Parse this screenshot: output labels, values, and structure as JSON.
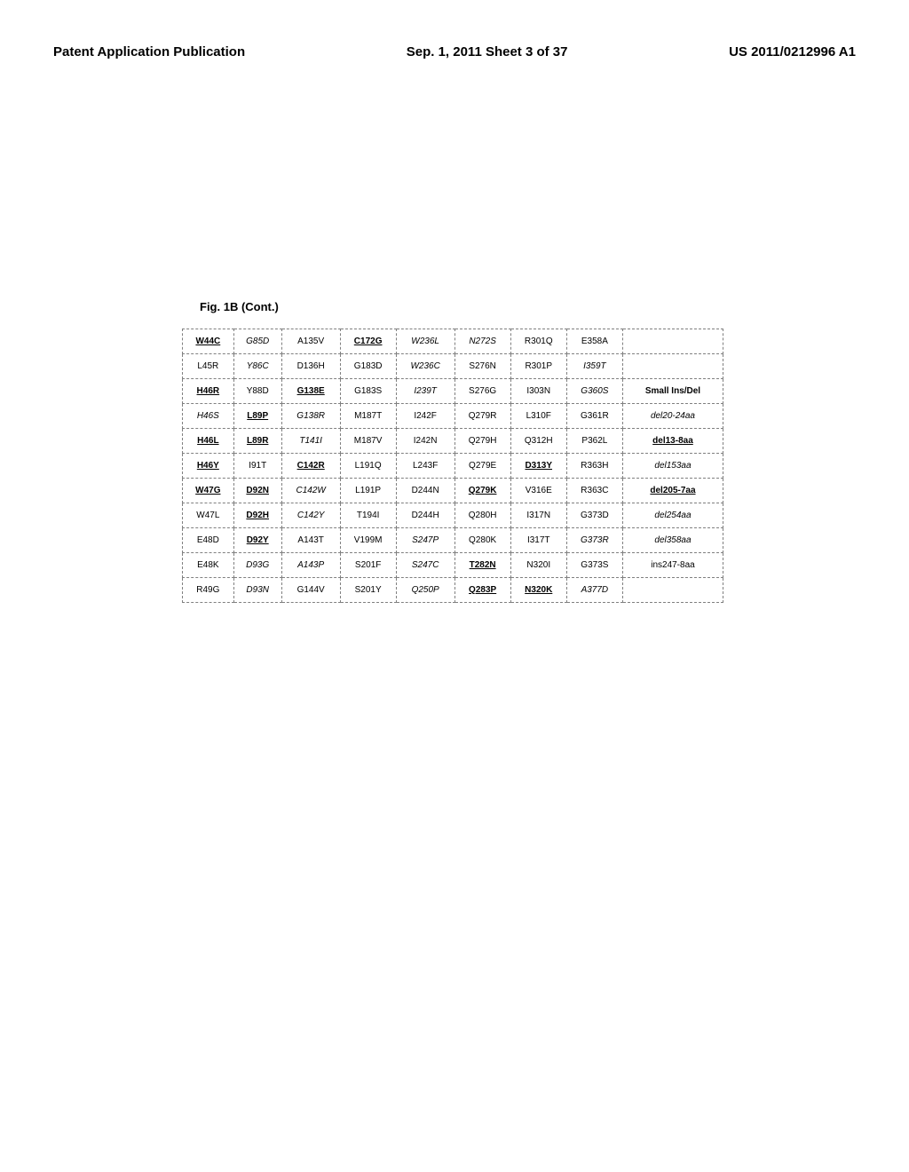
{
  "header": {
    "left": "Patent Application Publication",
    "center": "Sep. 1, 2011  Sheet 3 of 37",
    "right": "US 2011/0212996 A1"
  },
  "figure_label": "Fig. 1B (Cont.)",
  "table": {
    "rows": [
      [
        {
          "text": "W44C",
          "style": "bold-underline"
        },
        {
          "text": "G85D",
          "style": "italic"
        },
        {
          "text": "A135V",
          "style": ""
        },
        {
          "text": "C172G",
          "style": "bold-underline"
        },
        {
          "text": "W236L",
          "style": "italic"
        },
        {
          "text": "N272S",
          "style": "italic"
        },
        {
          "text": "R301Q",
          "style": ""
        },
        {
          "text": "E358A",
          "style": ""
        },
        {
          "text": "",
          "style": ""
        }
      ],
      [
        {
          "text": "L45R",
          "style": ""
        },
        {
          "text": "Y86C",
          "style": "italic"
        },
        {
          "text": "D136H",
          "style": ""
        },
        {
          "text": "G183D",
          "style": ""
        },
        {
          "text": "W236C",
          "style": "italic"
        },
        {
          "text": "S276N",
          "style": ""
        },
        {
          "text": "R301P",
          "style": ""
        },
        {
          "text": "I359T",
          "style": "italic"
        },
        {
          "text": "",
          "style": ""
        }
      ],
      [
        {
          "text": "H46R",
          "style": "bold-underline"
        },
        {
          "text": "Y88D",
          "style": ""
        },
        {
          "text": "G138E",
          "style": "bold-underline"
        },
        {
          "text": "G183S",
          "style": ""
        },
        {
          "text": "I239T",
          "style": "italic"
        },
        {
          "text": "S276G",
          "style": ""
        },
        {
          "text": "I303N",
          "style": ""
        },
        {
          "text": "G360S",
          "style": "italic"
        },
        {
          "text": "Small Ins/Del",
          "style": "bold"
        }
      ],
      [
        {
          "text": "H46S",
          "style": "italic"
        },
        {
          "text": "L89P",
          "style": "bold-underline"
        },
        {
          "text": "G138R",
          "style": "italic"
        },
        {
          "text": "M187T",
          "style": ""
        },
        {
          "text": "I242F",
          "style": ""
        },
        {
          "text": "Q279R",
          "style": ""
        },
        {
          "text": "L310F",
          "style": ""
        },
        {
          "text": "G361R",
          "style": ""
        },
        {
          "text": "del20-24aa",
          "style": "italic"
        }
      ],
      [
        {
          "text": "H46L",
          "style": "bold-underline"
        },
        {
          "text": "L89R",
          "style": "bold-underline"
        },
        {
          "text": "T141I",
          "style": "italic"
        },
        {
          "text": "M187V",
          "style": ""
        },
        {
          "text": "I242N",
          "style": ""
        },
        {
          "text": "Q279H",
          "style": ""
        },
        {
          "text": "Q312H",
          "style": ""
        },
        {
          "text": "P362L",
          "style": ""
        },
        {
          "text": "del13-8aa",
          "style": "bold-underline"
        }
      ],
      [
        {
          "text": "H46Y",
          "style": "bold-underline"
        },
        {
          "text": "I91T",
          "style": ""
        },
        {
          "text": "C142R",
          "style": "bold-underline"
        },
        {
          "text": "L191Q",
          "style": ""
        },
        {
          "text": "L243F",
          "style": ""
        },
        {
          "text": "Q279E",
          "style": ""
        },
        {
          "text": "D313Y",
          "style": "bold-underline"
        },
        {
          "text": "R363H",
          "style": ""
        },
        {
          "text": "del153aa",
          "style": "italic"
        }
      ],
      [
        {
          "text": "W47G",
          "style": "bold-underline"
        },
        {
          "text": "D92N",
          "style": "bold-underline"
        },
        {
          "text": "C142W",
          "style": "italic"
        },
        {
          "text": "L191P",
          "style": ""
        },
        {
          "text": "D244N",
          "style": ""
        },
        {
          "text": "Q279K",
          "style": "bold-underline"
        },
        {
          "text": "V316E",
          "style": ""
        },
        {
          "text": "R363C",
          "style": ""
        },
        {
          "text": "del205-7aa",
          "style": "bold-underline"
        }
      ],
      [
        {
          "text": "W47L",
          "style": ""
        },
        {
          "text": "D92H",
          "style": "bold-underline"
        },
        {
          "text": "C142Y",
          "style": "italic"
        },
        {
          "text": "T194I",
          "style": ""
        },
        {
          "text": "D244H",
          "style": ""
        },
        {
          "text": "Q280H",
          "style": ""
        },
        {
          "text": "I317N",
          "style": ""
        },
        {
          "text": "G373D",
          "style": ""
        },
        {
          "text": "del254aa",
          "style": "italic"
        }
      ],
      [
        {
          "text": "E48D",
          "style": ""
        },
        {
          "text": "D92Y",
          "style": "bold-underline"
        },
        {
          "text": "A143T",
          "style": ""
        },
        {
          "text": "V199M",
          "style": ""
        },
        {
          "text": "S247P",
          "style": "italic"
        },
        {
          "text": "Q280K",
          "style": ""
        },
        {
          "text": "I317T",
          "style": ""
        },
        {
          "text": "G373R",
          "style": "italic"
        },
        {
          "text": "del358aa",
          "style": "italic"
        }
      ],
      [
        {
          "text": "E48K",
          "style": ""
        },
        {
          "text": "D93G",
          "style": "italic"
        },
        {
          "text": "A143P",
          "style": "italic"
        },
        {
          "text": "S201F",
          "style": ""
        },
        {
          "text": "S247C",
          "style": "italic"
        },
        {
          "text": "T282N",
          "style": "bold-underline"
        },
        {
          "text": "N320I",
          "style": ""
        },
        {
          "text": "G373S",
          "style": ""
        },
        {
          "text": "ins247-8aa",
          "style": ""
        }
      ],
      [
        {
          "text": "R49G",
          "style": ""
        },
        {
          "text": "D93N",
          "style": "italic"
        },
        {
          "text": "G144V",
          "style": ""
        },
        {
          "text": "S201Y",
          "style": ""
        },
        {
          "text": "Q250P",
          "style": "italic"
        },
        {
          "text": "Q283P",
          "style": "bold-underline"
        },
        {
          "text": "N320K",
          "style": "bold-underline"
        },
        {
          "text": "A377D",
          "style": "italic"
        },
        {
          "text": "",
          "style": ""
        }
      ]
    ]
  }
}
